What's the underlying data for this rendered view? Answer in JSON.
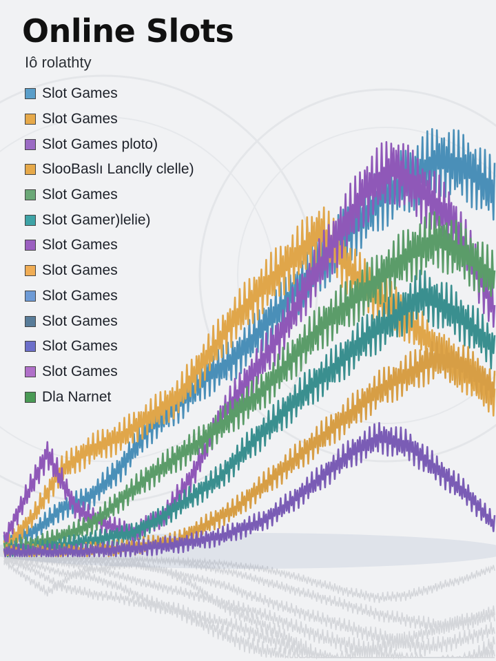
{
  "title": "Online Slots",
  "subtitle": "Iô rolathty",
  "chart_data": {
    "type": "line",
    "title": "Online Slots",
    "subtitle": "Iô rolathty",
    "xlabel": "",
    "ylabel": "",
    "grid": false,
    "legend_position": "top-left",
    "legend": [
      {
        "label": "Slot Games",
        "color": "#5a9ec9"
      },
      {
        "label": "Slot Games",
        "color": "#e6a94a"
      },
      {
        "label": "Slot Games ploto)",
        "color": "#9b6bc4"
      },
      {
        "label": "SlooBaslı Lanclly clelle)",
        "color": "#e6a94a"
      },
      {
        "label": "Slot Games",
        "color": "#6ba877"
      },
      {
        "label": "Slot Gamer)lelie)",
        "color": "#3ea3a6"
      },
      {
        "label": "Slot Games",
        "color": "#9b5fc0"
      },
      {
        "label": "Slot Games",
        "color": "#f0ad55"
      },
      {
        "label": "Slot Games",
        "color": "#6e9bd6"
      },
      {
        "label": "Slot Games",
        "color": "#587c99"
      },
      {
        "label": "Slot Games",
        "color": "#6c6fc9"
      },
      {
        "label": "Slot Games",
        "color": "#b070c9"
      },
      {
        "label": "Dla Narnet",
        "color": "#4a9a55"
      }
    ],
    "series": [
      {
        "color": "#4a8fb8",
        "points": [
          [
            0,
            4
          ],
          [
            4,
            6
          ],
          [
            8,
            12
          ],
          [
            12,
            15
          ],
          [
            16,
            22
          ],
          [
            20,
            32
          ],
          [
            24,
            38
          ],
          [
            28,
            45
          ],
          [
            32,
            50
          ],
          [
            36,
            58
          ],
          [
            40,
            66
          ],
          [
            44,
            74
          ],
          [
            48,
            82
          ],
          [
            52,
            90
          ],
          [
            56,
            95
          ],
          [
            60,
            100
          ],
          [
            64,
            98
          ],
          [
            68,
            92
          ]
        ]
      },
      {
        "color": "#e0a64a",
        "points": [
          [
            0,
            2
          ],
          [
            4,
            10
          ],
          [
            8,
            22
          ],
          [
            12,
            27
          ],
          [
            16,
            30
          ],
          [
            20,
            35
          ],
          [
            24,
            40
          ],
          [
            28,
            50
          ],
          [
            32,
            60
          ],
          [
            36,
            68
          ],
          [
            40,
            75
          ],
          [
            44,
            82
          ],
          [
            48,
            72
          ],
          [
            52,
            65
          ],
          [
            56,
            60
          ],
          [
            60,
            52
          ],
          [
            64,
            46
          ],
          [
            68,
            40
          ]
        ]
      },
      {
        "color": "#8f58b8",
        "points": [
          [
            0,
            4
          ],
          [
            3,
            15
          ],
          [
            6,
            26
          ],
          [
            10,
            12
          ],
          [
            14,
            8
          ],
          [
            18,
            6
          ],
          [
            22,
            10
          ],
          [
            26,
            20
          ],
          [
            30,
            35
          ],
          [
            34,
            45
          ],
          [
            38,
            55
          ],
          [
            42,
            68
          ],
          [
            46,
            80
          ],
          [
            50,
            92
          ],
          [
            54,
            98
          ],
          [
            58,
            92
          ],
          [
            62,
            85
          ],
          [
            66,
            70
          ],
          [
            68,
            62
          ]
        ]
      },
      {
        "color": "#5b9c69",
        "points": [
          [
            0,
            2
          ],
          [
            4,
            3
          ],
          [
            8,
            5
          ],
          [
            12,
            8
          ],
          [
            16,
            14
          ],
          [
            20,
            20
          ],
          [
            24,
            25
          ],
          [
            28,
            30
          ],
          [
            32,
            36
          ],
          [
            36,
            42
          ],
          [
            40,
            50
          ],
          [
            44,
            58
          ],
          [
            48,
            64
          ],
          [
            52,
            70
          ],
          [
            56,
            76
          ],
          [
            60,
            80
          ],
          [
            64,
            76
          ],
          [
            68,
            70
          ]
        ]
      },
      {
        "color": "#3a8f8f",
        "points": [
          [
            0,
            1
          ],
          [
            6,
            2
          ],
          [
            12,
            4
          ],
          [
            18,
            6
          ],
          [
            22,
            10
          ],
          [
            26,
            15
          ],
          [
            30,
            20
          ],
          [
            34,
            28
          ],
          [
            38,
            35
          ],
          [
            42,
            42
          ],
          [
            46,
            48
          ],
          [
            50,
            55
          ],
          [
            54,
            60
          ],
          [
            58,
            66
          ],
          [
            62,
            62
          ],
          [
            66,
            56
          ],
          [
            68,
            52
          ]
        ]
      },
      {
        "color": "#d79e45",
        "points": [
          [
            0,
            1
          ],
          [
            8,
            1
          ],
          [
            16,
            2
          ],
          [
            24,
            4
          ],
          [
            28,
            8
          ],
          [
            32,
            12
          ],
          [
            36,
            18
          ],
          [
            40,
            24
          ],
          [
            44,
            30
          ],
          [
            48,
            36
          ],
          [
            52,
            42
          ],
          [
            56,
            46
          ],
          [
            60,
            50
          ],
          [
            64,
            48
          ],
          [
            68,
            42
          ]
        ]
      },
      {
        "color": "#7a5cb5",
        "points": [
          [
            0,
            1
          ],
          [
            10,
            1
          ],
          [
            18,
            2
          ],
          [
            24,
            3
          ],
          [
            30,
            5
          ],
          [
            36,
            9
          ],
          [
            40,
            14
          ],
          [
            44,
            20
          ],
          [
            48,
            26
          ],
          [
            52,
            30
          ],
          [
            56,
            28
          ],
          [
            60,
            22
          ],
          [
            64,
            16
          ],
          [
            68,
            8
          ]
        ]
      }
    ]
  }
}
